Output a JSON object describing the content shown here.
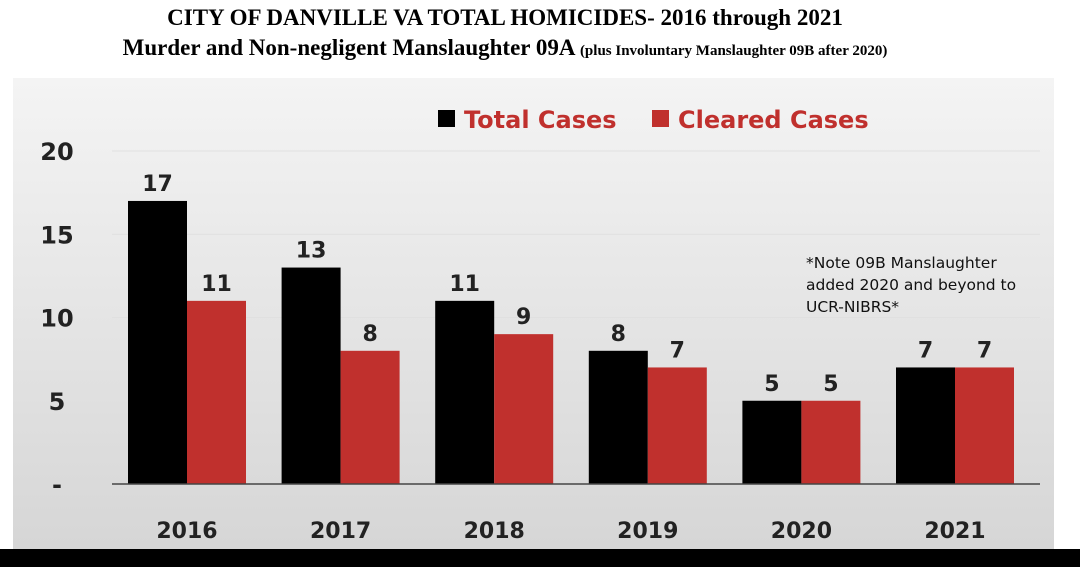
{
  "title": "CITY OF DANVILLE VA TOTAL HOMICIDES- 2016 through 2021",
  "subtitle_main": "Murder and Non-negligent Manslaughter 09A",
  "subtitle_note": "(plus Involuntary Manslaughter 09B after 2020)",
  "chart_data": {
    "type": "bar",
    "categories": [
      "2016",
      "2017",
      "2018",
      "2019",
      "2020",
      "2021"
    ],
    "series": [
      {
        "name": "Total Cases",
        "color": "#000000",
        "values": [
          17,
          13,
          11,
          8,
          5,
          7
        ]
      },
      {
        "name": "Cleared Cases",
        "color": "#c0302d",
        "values": [
          11,
          8,
          9,
          7,
          5,
          7
        ]
      }
    ],
    "ylim": [
      0,
      20
    ],
    "yticks": [
      "-",
      "5",
      "10",
      "15",
      "20"
    ],
    "yticks_values": [
      0,
      5,
      10,
      15,
      20
    ],
    "legend": "top-center",
    "grid": true,
    "legend_color": "#c0302d",
    "annotation": [
      "*Note 09B Manslaughter",
      "added 2020 and beyond to",
      "UCR-NIBRS*"
    ]
  }
}
